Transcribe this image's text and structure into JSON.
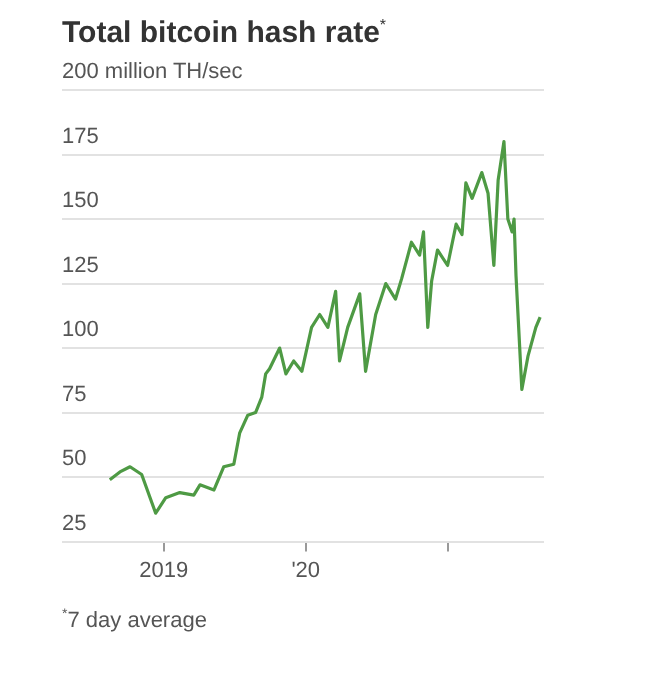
{
  "chart_data": {
    "type": "line",
    "title": "Total bitcoin hash rate$^{*}$",
    "annotations": [
      "$^{*}$7 day average"
    ],
    "x": [
      "2018-08-15",
      "2018-09-10",
      "2018-10-06",
      "2018-11-05",
      "2018-12-11",
      "2019-01-06",
      "2019-02-11",
      "2019-03-19",
      "2019-04-04",
      "2019-05-10",
      "2019-06-04",
      "2019-06-30",
      "2019-07-15",
      "2019-08-05",
      "2019-08-25",
      "2019-09-10",
      "2019-09-20",
      "2019-09-30",
      "2019-10-26",
      "2019-11-11",
      "2019-12-01",
      "2019-12-22",
      "2020-01-16",
      "2020-02-06",
      "2020-02-27",
      "2020-03-18",
      "2020-03-28",
      "2020-04-18",
      "2020-05-19",
      "2020-06-03",
      "2020-06-29",
      "2020-07-25",
      "2020-08-19",
      "2020-09-04",
      "2020-09-29",
      "2020-10-20",
      "2020-10-30",
      "2020-11-10",
      "2020-11-20",
      "2020-12-05",
      "2020-12-31",
      "2021-01-22",
      "2021-02-06",
      "2021-02-16",
      "2021-03-04",
      "2021-03-29",
      "2021-04-14",
      "2021-04-29",
      "2021-05-10",
      "2021-05-25",
      "2021-06-04",
      "2021-06-15",
      "2021-06-20",
      "2021-06-25",
      "2021-07-10",
      "2021-07-26",
      "2021-08-15",
      "2021-08-26"
    ],
    "series": [
      {
        "color": "#4e9a44",
        "values": [
          49,
          52,
          54,
          51,
          36,
          42,
          44,
          43,
          47,
          45,
          54,
          55,
          67,
          74,
          75,
          81,
          90,
          92,
          100,
          90,
          95,
          91,
          108,
          113,
          108,
          122,
          95,
          108,
          121,
          91,
          113,
          125,
          119,
          127,
          141,
          136,
          145,
          108,
          126,
          138,
          132,
          148,
          144,
          164,
          158,
          168,
          160,
          132,
          165,
          180,
          150,
          145,
          150,
          128,
          84,
          97,
          108,
          112
        ]
      }
    ],
    "xlim": [
      "2018-04-14",
      "2021-09-05"
    ],
    "xticks": [
      {
        "value": "2019-01-01",
        "label": "2019"
      },
      {
        "value": "2020-01-01",
        "label": "'20"
      },
      {
        "value": "2021-01-01",
        "label": null
      }
    ],
    "ylim": [
      25,
      200
    ],
    "yticks": [
      25,
      50,
      75,
      100,
      125,
      150,
      175,
      {
        "value": 200,
        "label": "200 million TH/sec"
      }
    ],
    "grid": "y",
    "legend": false,
    "marker": "none",
    "line_style": "solid"
  }
}
